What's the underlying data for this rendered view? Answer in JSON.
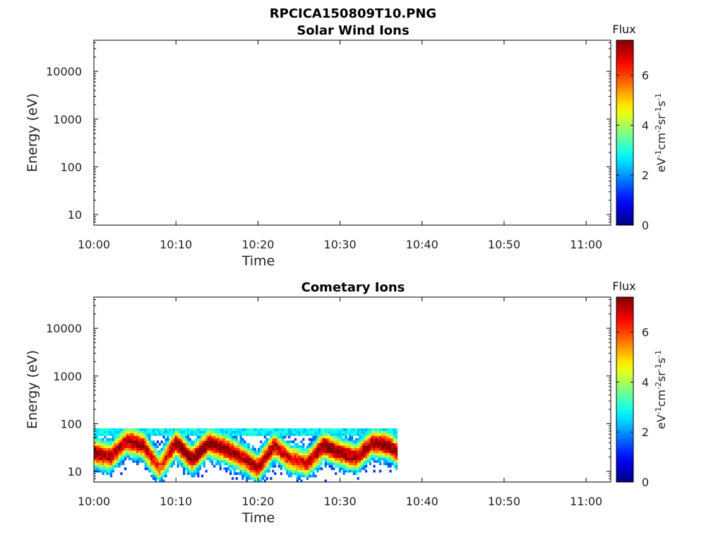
{
  "figure_title": "RPCICA150809T10.PNG",
  "colors": {
    "colormap": "jet",
    "axes": "#000000",
    "background": "#ffffff"
  },
  "chart_data": [
    {
      "type": "heatmap",
      "title": "Solar Wind Ions",
      "xlabel": "Time",
      "ylabel": "Energy (eV)",
      "x_ticks": [
        "10:00",
        "10:10",
        "10:20",
        "10:30",
        "10:40",
        "10:50",
        "11:00"
      ],
      "x_range": [
        "10:00",
        "11:03"
      ],
      "y_scale": "log",
      "y_ticks": [
        "10",
        "100",
        "1000",
        "10000"
      ],
      "y_range": [
        6,
        45000
      ],
      "colorbar": {
        "title": "Flux",
        "label_parts": [
          "eV",
          "-1",
          "cm",
          "-2",
          "sr",
          "-1",
          "s",
          "-1"
        ],
        "ticks": [
          "0",
          "2",
          "4",
          "6"
        ],
        "range": [
          0,
          7.4
        ]
      },
      "data": "none"
    },
    {
      "type": "heatmap",
      "title": "Cometary Ions",
      "xlabel": "Time",
      "ylabel": "Energy (eV)",
      "x_ticks": [
        "10:00",
        "10:10",
        "10:20",
        "10:30",
        "10:40",
        "10:50",
        "11:00"
      ],
      "x_range": [
        "10:00",
        "11:03"
      ],
      "y_scale": "log",
      "y_ticks": [
        "10",
        "100",
        "1000",
        "10000"
      ],
      "y_range": [
        6,
        45000
      ],
      "colorbar": {
        "title": "Flux",
        "label_parts": [
          "eV",
          "-1",
          "cm",
          "-2",
          "sr",
          "-1",
          "s",
          "-1"
        ],
        "ticks": [
          "0",
          "2",
          "4",
          "6"
        ],
        "range": [
          0,
          7.4
        ]
      },
      "data_time_range": [
        "10:00",
        "10:37"
      ],
      "data_energy_range": [
        6,
        80
      ],
      "peak_band": [
        {
          "time": "10:00",
          "energy": 25,
          "flux": 7.0
        },
        {
          "time": "10:02",
          "energy": 20,
          "flux": 6.5
        },
        {
          "time": "10:04",
          "energy": 45,
          "flux": 6.5
        },
        {
          "time": "10:06",
          "energy": 35,
          "flux": 6.8
        },
        {
          "time": "10:08",
          "energy": 12,
          "flux": 5.5
        },
        {
          "time": "10:10",
          "energy": 40,
          "flux": 7.0
        },
        {
          "time": "10:12",
          "energy": 18,
          "flux": 7.0
        },
        {
          "time": "10:14",
          "energy": 40,
          "flux": 7.0
        },
        {
          "time": "10:16",
          "energy": 30,
          "flux": 7.0
        },
        {
          "time": "10:18",
          "energy": 20,
          "flux": 6.5
        },
        {
          "time": "10:20",
          "energy": 12,
          "flux": 6.5
        },
        {
          "time": "10:22",
          "energy": 35,
          "flux": 6.5
        },
        {
          "time": "10:24",
          "energy": 18,
          "flux": 6.0
        },
        {
          "time": "10:26",
          "energy": 15,
          "flux": 6.0
        },
        {
          "time": "10:28",
          "energy": 35,
          "flux": 7.0
        },
        {
          "time": "10:30",
          "energy": 25,
          "flux": 7.0
        },
        {
          "time": "10:32",
          "energy": 20,
          "flux": 6.5
        },
        {
          "time": "10:34",
          "energy": 40,
          "flux": 6.8
        },
        {
          "time": "10:36",
          "energy": 35,
          "flux": 7.0
        },
        {
          "time": "10:37",
          "energy": 25,
          "flux": 6.5
        }
      ]
    }
  ]
}
